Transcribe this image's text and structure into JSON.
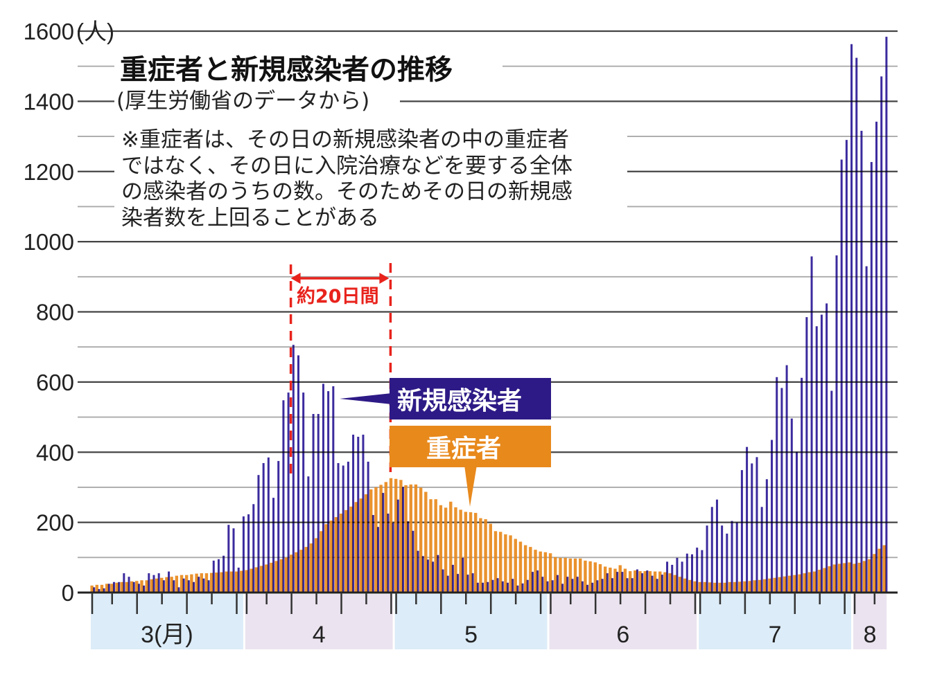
{
  "colors": {
    "new_cases": "#3b2b9e",
    "severe": "#e8891c",
    "annotation": "#e8231c",
    "band_a": "#dcecf8",
    "band_b": "#ebe3ef"
  },
  "text": {
    "title": "重症者と新規感染者の推移",
    "subtitle": "(厚生労働省のデータから)",
    "note": [
      "※重症者は、その日の新規感染者の中の重症者",
      "ではなく、その日に入院治療などを要する全体",
      "の感染者のうちの数。そのためその日の新規感",
      "染者数を上回ることがある"
    ],
    "y_unit": "(人)",
    "interval_label": "約20日間",
    "legend_new": "新規感染者",
    "legend_severe": "重症者"
  },
  "chart_data": {
    "type": "bar",
    "title": "重症者と新規感染者の推移",
    "subtitle": "(厚生労働省のデータから)",
    "xlabel": "",
    "ylabel": "(人)",
    "ylim": [
      0,
      1600
    ],
    "yticks": [
      "0",
      "200",
      "400",
      "600",
      "800",
      "1000",
      "1200",
      "1400",
      "1600"
    ],
    "grid": true,
    "months": [
      {
        "label": "3(月)",
        "days": 31
      },
      {
        "label": "4",
        "days": 30
      },
      {
        "label": "5",
        "days": 31
      },
      {
        "label": "6",
        "days": 30
      },
      {
        "label": "7",
        "days": 31
      },
      {
        "label": "8",
        "days": 7
      }
    ],
    "annotation_days": [
      40,
      60
    ],
    "series": [
      {
        "name": "新規感染者",
        "values": [
          15,
          10,
          12,
          25,
          30,
          30,
          55,
          45,
          30,
          25,
          20,
          55,
          50,
          55,
          35,
          60,
          35,
          15,
          40,
          35,
          30,
          45,
          40,
          35,
          91,
          95,
          105,
          193,
          183,
          71,
          217,
          223,
          252,
          335,
          369,
          385,
          270,
          375,
          548,
          570,
          706,
          676,
          570,
          331,
          509,
          509,
          595,
          574,
          588,
          369,
          362,
          373,
          450,
          444,
          450,
          373,
          221,
          187,
          284,
          225,
          199,
          265,
          301,
          203,
          176,
          119,
          104,
          94,
          88,
          107,
          66,
          48,
          79,
          53,
          99,
          51,
          55,
          28,
          28,
          30,
          36,
          41,
          32,
          28,
          39,
          20,
          26,
          36,
          59,
          63,
          45,
          32,
          35,
          50,
          25,
          45,
          39,
          45,
          32,
          22,
          28,
          35,
          39,
          55,
          41,
          59,
          59,
          41,
          41,
          66,
          55,
          63,
          48,
          39,
          51,
          88,
          79,
          99,
          88,
          111,
          109,
          128,
          121,
          191,
          244,
          265,
          191,
          168,
          204,
          200,
          349,
          415,
          368,
          386,
          244,
          323,
          435,
          614,
          583,
          648,
          496,
          401,
          612,
          785,
          958,
          759,
          792,
          824,
          575,
          961,
          1234,
          1290,
          1563,
          1524,
          1316,
          930,
          1227,
          1342,
          1471,
          1584
        ]
      },
      {
        "name": "重症者",
        "values": [
          20,
          22,
          22,
          25,
          25,
          28,
          30,
          30,
          32,
          33,
          35,
          35,
          38,
          40,
          42,
          44,
          45,
          48,
          50,
          50,
          52,
          54,
          55,
          55,
          56,
          57,
          58,
          60,
          60,
          60,
          62,
          64,
          68,
          72,
          76,
          80,
          85,
          90,
          95,
          100,
          108,
          115,
          122,
          130,
          140,
          155,
          175,
          195,
          205,
          215,
          225,
          235,
          245,
          258,
          268,
          280,
          294,
          300,
          307,
          315,
          326,
          324,
          321,
          306,
          308,
          308,
          299,
          287,
          266,
          266,
          249,
          242,
          259,
          243,
          236,
          230,
          229,
          227,
          212,
          209,
          196,
          175,
          173,
          166,
          163,
          153,
          145,
          135,
          130,
          122,
          117,
          115,
          112,
          101,
          99,
          99,
          97,
          97,
          97,
          91,
          89,
          86,
          81,
          74,
          71,
          68,
          78,
          68,
          61,
          63,
          61,
          61,
          61,
          60,
          60,
          58,
          55,
          50,
          45,
          40,
          36,
          32,
          30,
          30,
          29,
          28,
          28,
          28,
          30,
          30,
          31,
          32,
          33,
          35,
          36,
          38,
          40,
          42,
          44,
          46,
          48,
          50,
          52,
          55,
          58,
          60,
          65,
          70,
          75,
          80,
          82,
          84,
          86,
          82,
          85,
          90,
          95,
          110,
          125,
          135
        ]
      }
    ]
  }
}
